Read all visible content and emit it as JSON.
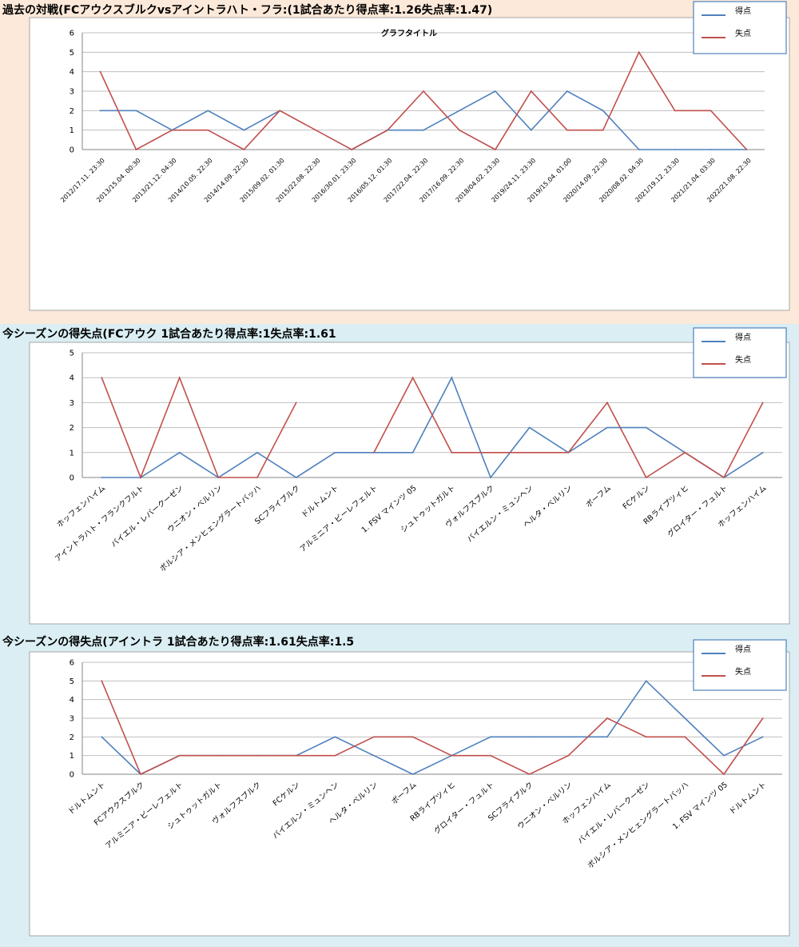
{
  "colors": {
    "band1_bg": "#fde9d9",
    "band2_bg": "#daeef3",
    "band3_bg": "#daeef3",
    "series_scored": "#4f81bd",
    "series_conceded": "#c0504d",
    "legend_border": "#4f81bd"
  },
  "panels": [
    {
      "title": "過去の対戦(FCアウクスブルクvsアイントラハト・フラ:(1試合あたり得点率:1.26失点率:1.47)",
      "chart_data": {
        "type": "line",
        "title": "グラフタイトル",
        "categories": [
          "2012/17.11. 23:30",
          "2013/15.04. 00:30",
          "2013/21.12. 04:30",
          "2014/10.05. 22:30",
          "2014/14.09. 22:30",
          "2015/09.02. 01:30",
          "2015/22.08. 22:30",
          "2016/30.01. 23:30",
          "2016/05.12. 01:30",
          "2017/22.04. 22:30",
          "2017/16.09. 22:30",
          "2018/04.02. 23:30",
          "2019/24.11. 23:30",
          "2019/15.04. 01:00",
          "2020/14.09. 22:30",
          "2020/08.02. 04:30",
          "2021/19.12. 23:30",
          "2021/21.04. 03:30",
          "2022/21.08. 22:30"
        ],
        "series": [
          {
            "name": "得点",
            "values": [
              2,
              2,
              1,
              2,
              1,
              2,
              null,
              0,
              1,
              1,
              2,
              3,
              1,
              3,
              2,
              0,
              0,
              0,
              0
            ]
          },
          {
            "name": "失点",
            "values": [
              4,
              0,
              1,
              1,
              0,
              2,
              1,
              0,
              1,
              3,
              1,
              0,
              3,
              1,
              1,
              5,
              2,
              2,
              0
            ]
          }
        ],
        "ylim": [
          0,
          6
        ],
        "yticks": [
          0,
          1,
          2,
          3,
          4,
          5,
          6
        ],
        "grid": true,
        "legend": "top-right"
      }
    },
    {
      "title": "今シーズンの得失点(FCアウク 1試合あたり得点率:1失点率:1.61",
      "chart_data": {
        "type": "line",
        "title": "",
        "categories": [
          "ホッフェンハイム",
          "アイントラハト・フランクフルト",
          "バイエル・レバークーゼン",
          "ウニオン・ベルリン",
          "ボルシア・メンヒェングラートバッハ",
          "SCフライブルク",
          "ドルトムント",
          "アルミニア・ビーレフェルト",
          "1. FSV マインツ 05",
          "シュトゥットガルト",
          "ヴォルフスブルク",
          "バイエルン・ミュンヘン",
          "ヘルタ・ベルリン",
          "ボーフム",
          "FCケルン",
          "RBライプツィヒ",
          "グロイター・フュルト",
          "ホッフェンハイム"
        ],
        "series": [
          {
            "name": "得点",
            "values": [
              0,
              0,
              1,
              0,
              1,
              0,
              1,
              1,
              1,
              4,
              0,
              2,
              1,
              2,
              2,
              1,
              0,
              1
            ]
          },
          {
            "name": "失点",
            "values": [
              4,
              0,
              4,
              0,
              0,
              3,
              null,
              1,
              4,
              1,
              1,
              1,
              1,
              3,
              0,
              1,
              0,
              3
            ]
          }
        ],
        "ylim": [
          0,
          5
        ],
        "yticks": [
          0,
          1,
          2,
          3,
          4,
          5
        ],
        "grid": true,
        "legend": "top-right"
      }
    },
    {
      "title": "今シーズンの得失点(アイントラ 1試合あたり得点率:1.61失点率:1.5",
      "chart_data": {
        "type": "line",
        "title": "",
        "categories": [
          "ドルトムント",
          "FCアウクスブルク",
          "アルミニア・ビーレフェルト",
          "シュトゥットガルト",
          "ヴォルフスブルク",
          "FCケルン",
          "バイエルン・ミュンヘン",
          "ヘルタ・ベルリン",
          "ボーフム",
          "RBライプツィヒ",
          "グロイター・フュルト",
          "SCフライブルク",
          "ウニオン・ベルリン",
          "ホッフェンハイム",
          "バイエル・レバークーゼン",
          "ボルシア・メンヒェングラートバッハ",
          "1. FSV マインツ 05",
          "ドルトムント"
        ],
        "series": [
          {
            "name": "得点",
            "values": [
              2,
              0,
              1,
              1,
              1,
              1,
              2,
              1,
              0,
              1,
              2,
              2,
              2,
              2,
              5,
              3,
              1,
              2
            ]
          },
          {
            "name": "失点",
            "values": [
              5,
              0,
              1,
              1,
              1,
              1,
              1,
              2,
              2,
              1,
              1,
              0,
              1,
              3,
              2,
              2,
              0,
              3
            ]
          }
        ],
        "ylim": [
          0,
          6
        ],
        "yticks": [
          0,
          1,
          2,
          3,
          4,
          5,
          6
        ],
        "grid": true,
        "legend": "top-right"
      }
    }
  ]
}
